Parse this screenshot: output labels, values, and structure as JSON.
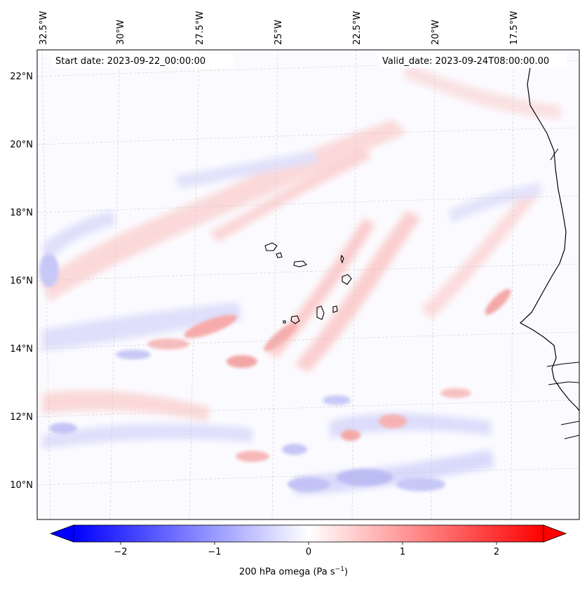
{
  "header": {
    "start_date": "Start date: 2023-09-22_00:00:00",
    "valid_date": "Valid_date: 2023-09-24T08:00:00.00"
  },
  "map": {
    "projection": "Lambert conformal",
    "lon_labels": [
      "32.5°W",
      "30°W",
      "27.5°W",
      "25°W",
      "22.5°W",
      "20°W",
      "17.5°W"
    ],
    "lat_labels": [
      "22°N",
      "20°N",
      "18°N",
      "16°N",
      "14°N",
      "12°N",
      "10°N"
    ],
    "gridlines": true,
    "coastline_color": "#000000",
    "field": "200 hPa vertical velocity (omega) shaded"
  },
  "colorbar": {
    "cmap": "bwr",
    "min": -2.5,
    "max": 2.5,
    "extend": "both",
    "ticks": [
      "−2",
      "−1",
      "0",
      "1",
      "2"
    ],
    "tick_values": [
      -2,
      -1,
      0,
      1,
      2
    ],
    "label_text": "200 hPa omega (Pa s",
    "label_sup": "−1",
    "label_close": ")",
    "colors": {
      "negative": "#0000ff",
      "zero": "#ffffff",
      "positive": "#ff0000"
    }
  }
}
